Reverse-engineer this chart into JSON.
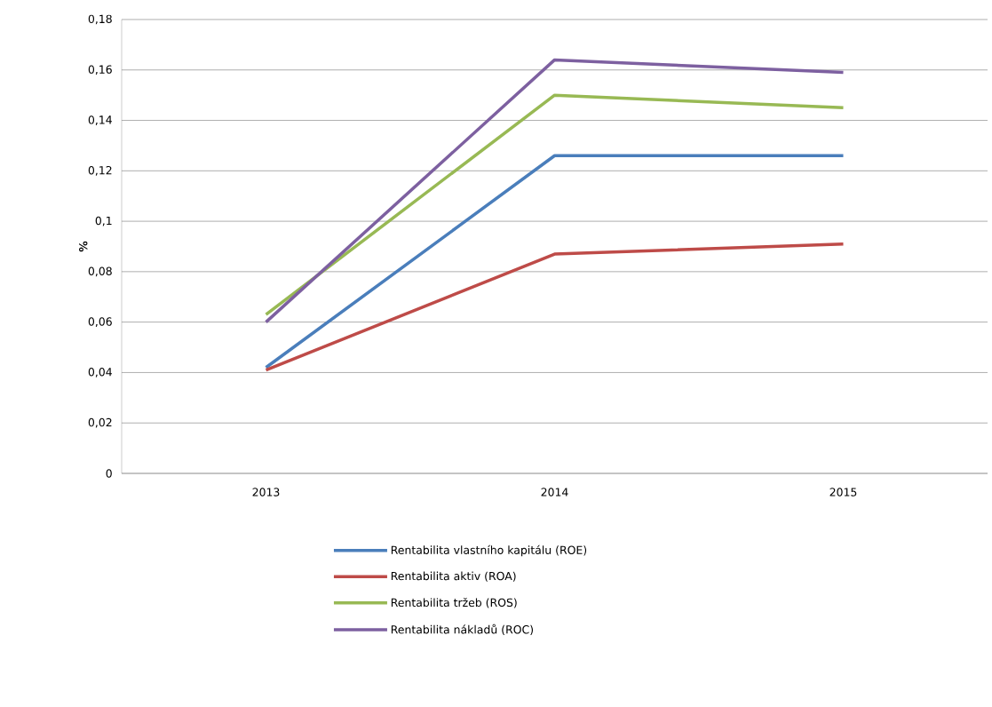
{
  "chart_data": {
    "type": "line",
    "ylabel": "%",
    "categories": [
      "2013",
      "2014",
      "2015"
    ],
    "series": [
      {
        "name": "Rentabilita vlastního kapitálu (ROE)",
        "color": "#4a7ebb",
        "values": [
          0.042,
          0.126,
          0.126
        ]
      },
      {
        "name": "Rentabilita aktiv (ROA)",
        "color": "#be4b48",
        "values": [
          0.041,
          0.087,
          0.091
        ]
      },
      {
        "name": "Rentabilita tržeb (ROS)",
        "color": "#98b954",
        "values": [
          0.063,
          0.15,
          0.145
        ]
      },
      {
        "name": "Rentabilita nákladů (ROC)",
        "color": "#7d60a0",
        "values": [
          0.06,
          0.164,
          0.159
        ]
      }
    ],
    "ylim": [
      0,
      0.18
    ],
    "yticks": [
      {
        "value": 0,
        "label": "0"
      },
      {
        "value": 0.02,
        "label": "0,02"
      },
      {
        "value": 0.04,
        "label": "0,04"
      },
      {
        "value": 0.06,
        "label": "0,06"
      },
      {
        "value": 0.08,
        "label": "0,08"
      },
      {
        "value": 0.1,
        "label": "0,1"
      },
      {
        "value": 0.12,
        "label": "0,12"
      },
      {
        "value": 0.14,
        "label": "0,14"
      },
      {
        "value": 0.16,
        "label": "0,16"
      },
      {
        "value": 0.18,
        "label": "0,18"
      }
    ],
    "grid": "y",
    "legend": "bottom",
    "marker": "none",
    "line_style": "solid"
  }
}
